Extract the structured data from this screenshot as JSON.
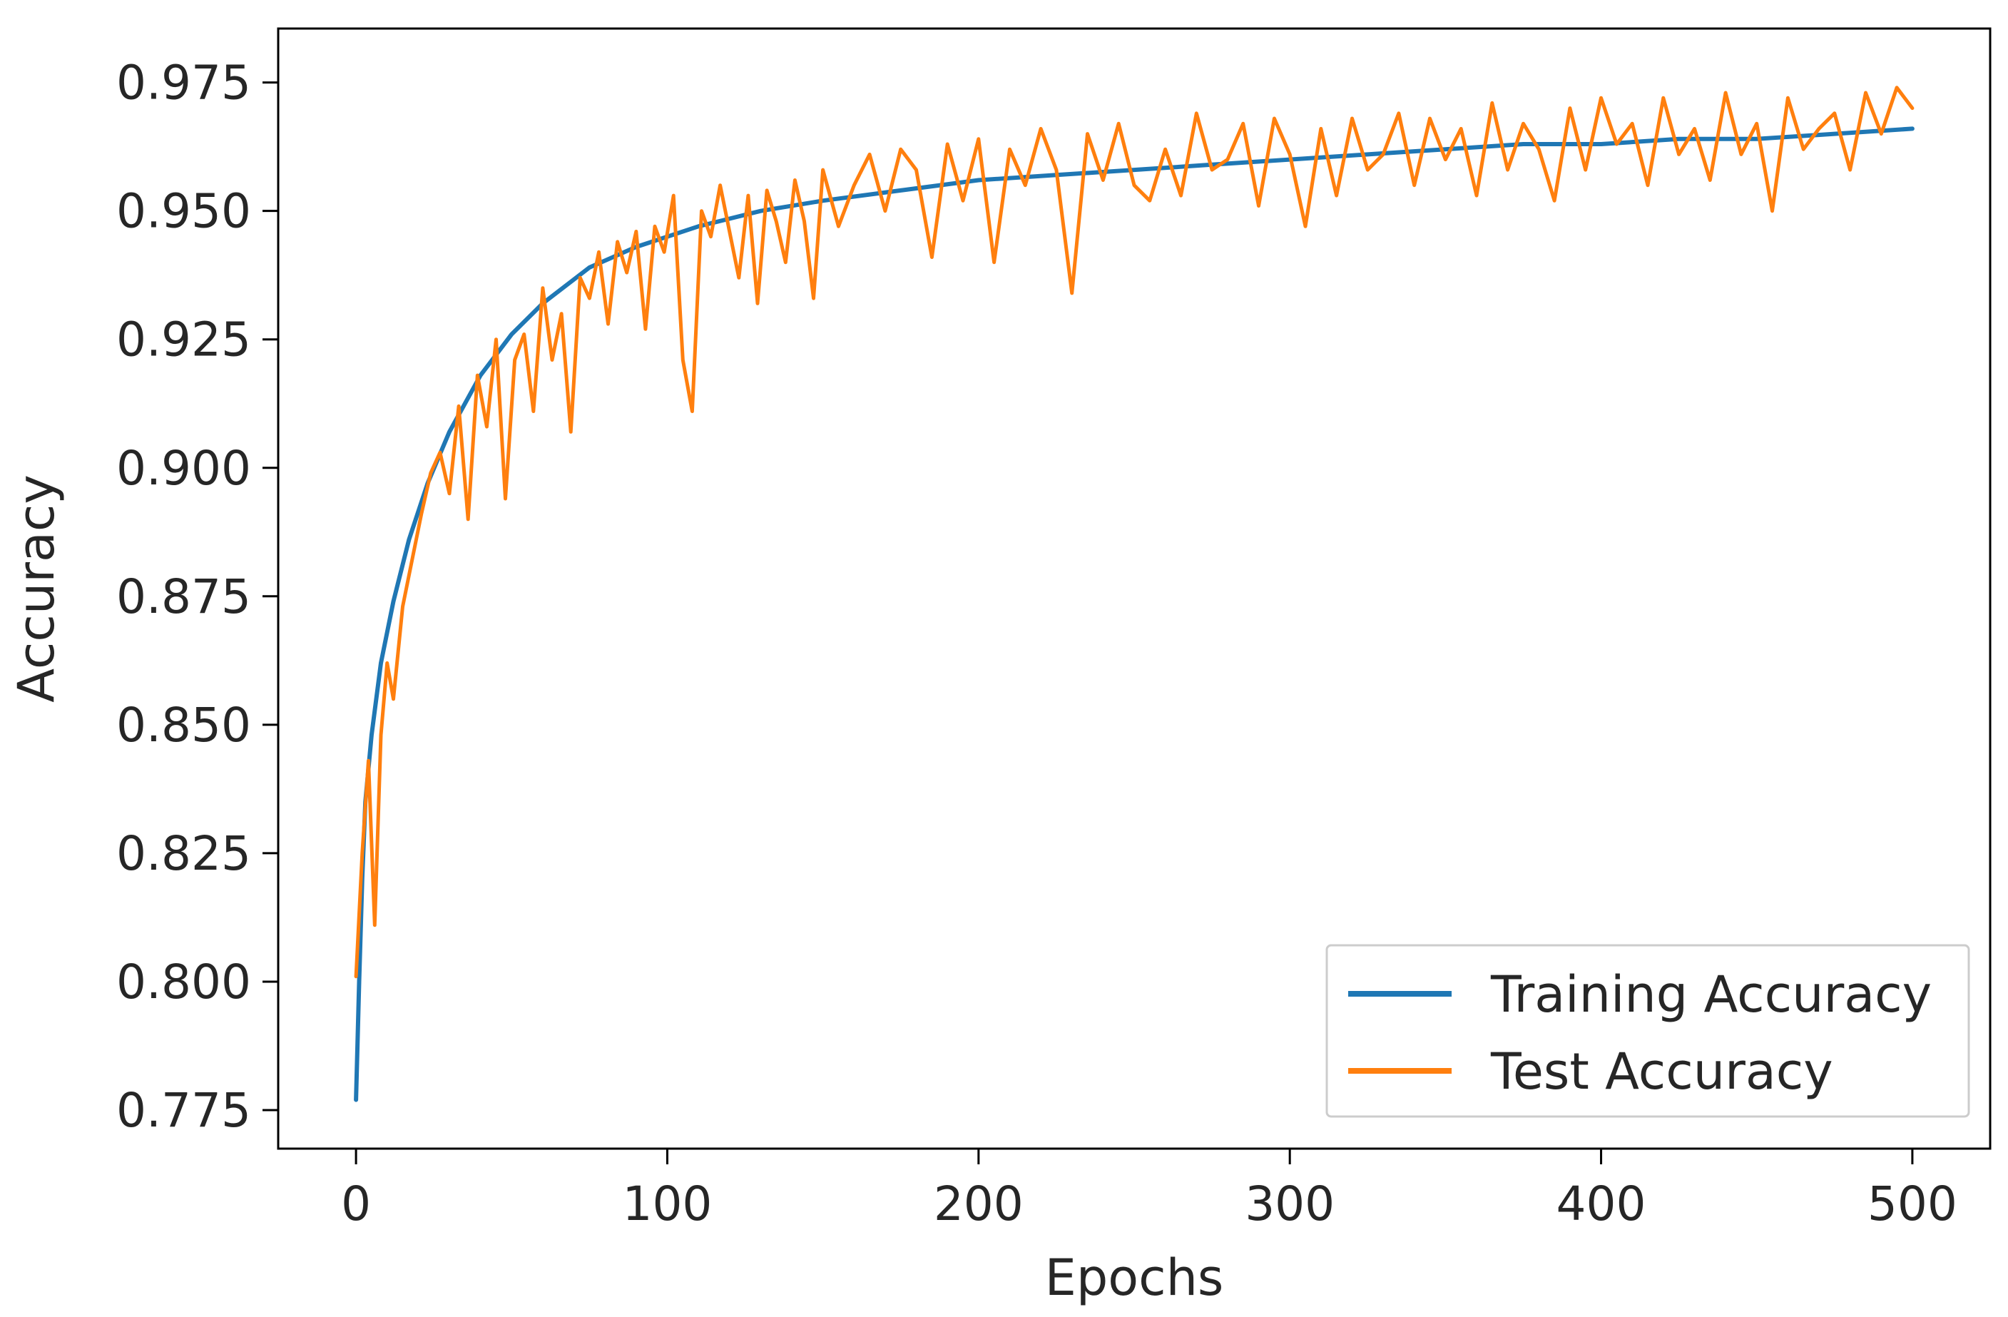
{
  "chart_data": {
    "type": "line",
    "title": "",
    "xlabel": "Epochs",
    "ylabel": "Accuracy",
    "xlim": [
      -25,
      525
    ],
    "ylim": [
      0.7675,
      0.9855
    ],
    "xticks": [
      0,
      100,
      200,
      300,
      400,
      500
    ],
    "xtick_labels": [
      "0",
      "100",
      "200",
      "300",
      "400",
      "500"
    ],
    "yticks": [
      0.775,
      0.8,
      0.825,
      0.85,
      0.875,
      0.9,
      0.925,
      0.95,
      0.975
    ],
    "ytick_labels": [
      "0.775",
      "0.800",
      "0.825",
      "0.850",
      "0.875",
      "0.900",
      "0.925",
      "0.950",
      "0.975"
    ],
    "grid": false,
    "legend_position": "lower-right",
    "series": [
      {
        "name": "Training Accuracy",
        "color": "#1f77b4",
        "x": [
          0,
          1,
          2,
          3,
          5,
          8,
          12,
          17,
          23,
          30,
          40,
          50,
          60,
          75,
          90,
          110,
          130,
          150,
          175,
          200,
          225,
          250,
          275,
          300,
          325,
          350,
          375,
          400,
          425,
          450,
          475,
          500
        ],
        "y": [
          0.777,
          0.8,
          0.82,
          0.835,
          0.848,
          0.862,
          0.874,
          0.886,
          0.897,
          0.907,
          0.918,
          0.926,
          0.932,
          0.939,
          0.943,
          0.947,
          0.95,
          0.952,
          0.954,
          0.956,
          0.957,
          0.958,
          0.959,
          0.96,
          0.961,
          0.962,
          0.963,
          0.963,
          0.964,
          0.964,
          0.965,
          0.966
        ]
      },
      {
        "name": "Test Accuracy",
        "color": "#ff7f0e",
        "x": [
          0,
          2,
          4,
          6,
          8,
          10,
          12,
          15,
          18,
          21,
          24,
          27,
          30,
          33,
          36,
          39,
          42,
          45,
          48,
          51,
          54,
          57,
          60,
          63,
          66,
          69,
          72,
          75,
          78,
          81,
          84,
          87,
          90,
          93,
          96,
          99,
          102,
          105,
          108,
          111,
          114,
          117,
          120,
          123,
          126,
          129,
          132,
          135,
          138,
          141,
          144,
          147,
          150,
          155,
          160,
          165,
          170,
          175,
          180,
          185,
          190,
          195,
          200,
          205,
          210,
          215,
          220,
          225,
          230,
          235,
          240,
          245,
          250,
          255,
          260,
          265,
          270,
          275,
          280,
          285,
          290,
          295,
          300,
          305,
          310,
          315,
          320,
          325,
          330,
          335,
          340,
          345,
          350,
          355,
          360,
          365,
          370,
          375,
          380,
          385,
          390,
          395,
          400,
          405,
          410,
          415,
          420,
          425,
          430,
          435,
          440,
          445,
          450,
          455,
          460,
          465,
          470,
          475,
          480,
          485,
          490,
          495,
          500
        ],
        "y": [
          0.801,
          0.825,
          0.843,
          0.811,
          0.848,
          0.862,
          0.855,
          0.873,
          0.882,
          0.891,
          0.899,
          0.903,
          0.895,
          0.912,
          0.89,
          0.918,
          0.908,
          0.925,
          0.894,
          0.921,
          0.926,
          0.911,
          0.935,
          0.921,
          0.93,
          0.907,
          0.937,
          0.933,
          0.942,
          0.928,
          0.944,
          0.938,
          0.946,
          0.927,
          0.947,
          0.942,
          0.953,
          0.921,
          0.911,
          0.95,
          0.945,
          0.955,
          0.946,
          0.937,
          0.953,
          0.932,
          0.954,
          0.948,
          0.94,
          0.956,
          0.948,
          0.933,
          0.958,
          0.947,
          0.955,
          0.961,
          0.95,
          0.962,
          0.958,
          0.941,
          0.963,
          0.952,
          0.964,
          0.94,
          0.962,
          0.955,
          0.966,
          0.958,
          0.934,
          0.965,
          0.956,
          0.967,
          0.955,
          0.952,
          0.962,
          0.953,
          0.969,
          0.958,
          0.96,
          0.967,
          0.951,
          0.968,
          0.961,
          0.947,
          0.966,
          0.953,
          0.968,
          0.958,
          0.961,
          0.969,
          0.955,
          0.968,
          0.96,
          0.966,
          0.953,
          0.971,
          0.958,
          0.967,
          0.962,
          0.952,
          0.97,
          0.958,
          0.972,
          0.963,
          0.967,
          0.955,
          0.972,
          0.961,
          0.966,
          0.956,
          0.973,
          0.961,
          0.967,
          0.95,
          0.972,
          0.962,
          0.966,
          0.969,
          0.958,
          0.973,
          0.965,
          0.974,
          0.97
        ]
      }
    ]
  }
}
